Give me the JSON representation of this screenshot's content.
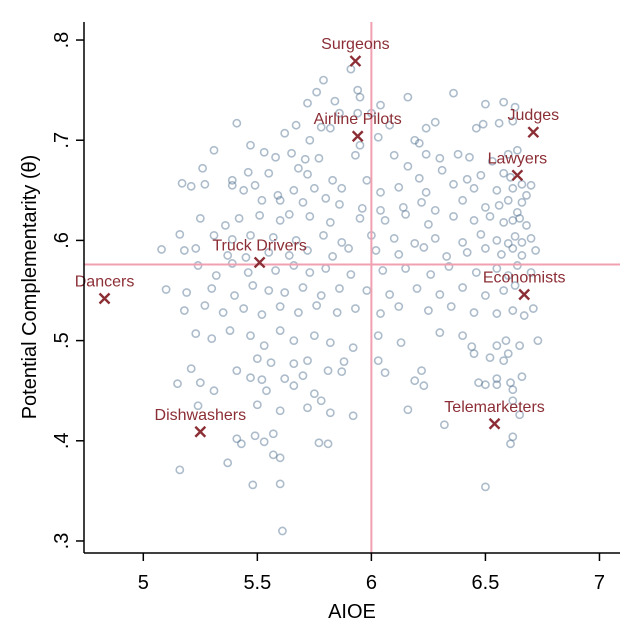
{
  "chart_data": {
    "type": "scatter",
    "title": "",
    "xlabel": "AIOE",
    "ylabel": "Potential Complementarity (θ)",
    "xlim": [
      4.74,
      7.09
    ],
    "ylim": [
      0.288,
      0.818
    ],
    "xticks": [
      5,
      5.5,
      6,
      6.5,
      7
    ],
    "xtick_labels": [
      "5",
      "5.5",
      "6",
      "6.5",
      "7"
    ],
    "yticks": [
      0.3,
      0.4,
      0.5,
      0.6,
      0.7,
      0.8
    ],
    "ytick_labels": [
      ".3",
      ".4",
      ".5",
      ".6",
      ".7",
      ".8"
    ],
    "grid": false,
    "reference_lines": {
      "x": 6.0,
      "y": 0.576
    },
    "colors": {
      "points": "#4a6a8c",
      "highlight": "#8b2e35",
      "reflines": "#f0a0b0"
    },
    "highlighted": [
      {
        "label": "Surgeons",
        "x": 5.93,
        "y": 0.779
      },
      {
        "label": "Airline Pilots",
        "x": 5.94,
        "y": 0.704
      },
      {
        "label": "Judges",
        "x": 6.71,
        "y": 0.708
      },
      {
        "label": "Lawyers",
        "x": 6.64,
        "y": 0.665
      },
      {
        "label": "Truck Drivers",
        "x": 5.51,
        "y": 0.578
      },
      {
        "label": "Dancers",
        "x": 4.83,
        "y": 0.542
      },
      {
        "label": "Economists",
        "x": 6.67,
        "y": 0.546
      },
      {
        "label": "Dishwashers",
        "x": 5.25,
        "y": 0.409
      },
      {
        "label": "Telemarketers",
        "x": 6.54,
        "y": 0.417
      }
    ],
    "points": [
      [
        5.91,
        0.771
      ],
      [
        5.79,
        0.76
      ],
      [
        5.94,
        0.75
      ],
      [
        5.95,
        0.743
      ],
      [
        5.76,
        0.748
      ],
      [
        5.72,
        0.737
      ],
      [
        5.84,
        0.739
      ],
      [
        6.16,
        0.743
      ],
      [
        6.36,
        0.747
      ],
      [
        5.86,
        0.727
      ],
      [
        5.94,
        0.727
      ],
      [
        6.0,
        0.727
      ],
      [
        6.04,
        0.735
      ],
      [
        6.5,
        0.736
      ],
      [
        6.58,
        0.738
      ],
      [
        6.63,
        0.733
      ],
      [
        5.41,
        0.717
      ],
      [
        5.67,
        0.715
      ],
      [
        5.82,
        0.712
      ],
      [
        5.78,
        0.713
      ],
      [
        6.08,
        0.715
      ],
      [
        6.24,
        0.712
      ],
      [
        6.28,
        0.718
      ],
      [
        6.46,
        0.712
      ],
      [
        6.49,
        0.716
      ],
      [
        6.56,
        0.717
      ],
      [
        6.62,
        0.719
      ],
      [
        5.62,
        0.707
      ],
      [
        5.73,
        0.7
      ],
      [
        5.95,
        0.695
      ],
      [
        6.03,
        0.703
      ],
      [
        6.19,
        0.7
      ],
      [
        6.21,
        0.697
      ],
      [
        5.31,
        0.69
      ],
      [
        5.47,
        0.695
      ],
      [
        5.53,
        0.688
      ],
      [
        5.58,
        0.683
      ],
      [
        5.65,
        0.687
      ],
      [
        5.71,
        0.681
      ],
      [
        5.77,
        0.682
      ],
      [
        5.93,
        0.685
      ],
      [
        6.1,
        0.685
      ],
      [
        6.24,
        0.686
      ],
      [
        6.3,
        0.682
      ],
      [
        6.38,
        0.686
      ],
      [
        6.43,
        0.683
      ],
      [
        6.53,
        0.679
      ],
      [
        6.6,
        0.686
      ],
      [
        6.64,
        0.69
      ],
      [
        5.26,
        0.672
      ],
      [
        5.39,
        0.66
      ],
      [
        5.46,
        0.668
      ],
      [
        5.55,
        0.667
      ],
      [
        5.68,
        0.672
      ],
      [
        5.72,
        0.666
      ],
      [
        5.83,
        0.66
      ],
      [
        5.98,
        0.66
      ],
      [
        6.16,
        0.674
      ],
      [
        6.21,
        0.662
      ],
      [
        6.31,
        0.67
      ],
      [
        6.42,
        0.661
      ],
      [
        6.48,
        0.665
      ],
      [
        6.58,
        0.667
      ],
      [
        6.61,
        0.663
      ],
      [
        5.17,
        0.657
      ],
      [
        5.21,
        0.654
      ],
      [
        5.27,
        0.656
      ],
      [
        5.39,
        0.655
      ],
      [
        5.44,
        0.65
      ],
      [
        5.49,
        0.655
      ],
      [
        5.59,
        0.645
      ],
      [
        5.66,
        0.65
      ],
      [
        5.75,
        0.652
      ],
      [
        5.87,
        0.652
      ],
      [
        6.04,
        0.648
      ],
      [
        6.12,
        0.653
      ],
      [
        6.24,
        0.648
      ],
      [
        6.36,
        0.656
      ],
      [
        6.45,
        0.652
      ],
      [
        6.55,
        0.65
      ],
      [
        6.62,
        0.652
      ],
      [
        6.66,
        0.656
      ],
      [
        6.68,
        0.645
      ],
      [
        6.7,
        0.655
      ],
      [
        5.52,
        0.64
      ],
      [
        5.6,
        0.64
      ],
      [
        5.7,
        0.638
      ],
      [
        5.8,
        0.642
      ],
      [
        5.86,
        0.636
      ],
      [
        5.96,
        0.632
      ],
      [
        6.04,
        0.63
      ],
      [
        6.14,
        0.633
      ],
      [
        6.22,
        0.638
      ],
      [
        6.28,
        0.63
      ],
      [
        6.4,
        0.64
      ],
      [
        6.5,
        0.633
      ],
      [
        6.56,
        0.635
      ],
      [
        6.6,
        0.64
      ],
      [
        6.64,
        0.628
      ],
      [
        6.66,
        0.638
      ],
      [
        5.25,
        0.622
      ],
      [
        5.36,
        0.615
      ],
      [
        5.42,
        0.622
      ],
      [
        5.51,
        0.625
      ],
      [
        5.6,
        0.62
      ],
      [
        5.64,
        0.626
      ],
      [
        5.73,
        0.624
      ],
      [
        5.82,
        0.618
      ],
      [
        5.95,
        0.622
      ],
      [
        6.06,
        0.62
      ],
      [
        6.15,
        0.626
      ],
      [
        6.25,
        0.616
      ],
      [
        6.36,
        0.624
      ],
      [
        6.45,
        0.62
      ],
      [
        6.52,
        0.624
      ],
      [
        6.58,
        0.618
      ],
      [
        6.62,
        0.62
      ],
      [
        6.65,
        0.622
      ],
      [
        6.68,
        0.615
      ],
      [
        5.16,
        0.606
      ],
      [
        5.31,
        0.605
      ],
      [
        5.39,
        0.601
      ],
      [
        5.47,
        0.605
      ],
      [
        5.57,
        0.603
      ],
      [
        5.67,
        0.6
      ],
      [
        5.79,
        0.605
      ],
      [
        5.87,
        0.598
      ],
      [
        6.0,
        0.605
      ],
      [
        6.1,
        0.602
      ],
      [
        6.19,
        0.597
      ],
      [
        6.28,
        0.602
      ],
      [
        6.4,
        0.598
      ],
      [
        6.48,
        0.606
      ],
      [
        6.55,
        0.6
      ],
      [
        6.6,
        0.597
      ],
      [
        6.63,
        0.604
      ],
      [
        6.66,
        0.598
      ],
      [
        6.7,
        0.602
      ],
      [
        5.08,
        0.591
      ],
      [
        5.18,
        0.59
      ],
      [
        5.23,
        0.592
      ],
      [
        5.37,
        0.585
      ],
      [
        5.45,
        0.583
      ],
      [
        5.55,
        0.588
      ],
      [
        5.64,
        0.585
      ],
      [
        5.72,
        0.59
      ],
      [
        5.83,
        0.584
      ],
      [
        5.9,
        0.592
      ],
      [
        6.02,
        0.59
      ],
      [
        6.12,
        0.586
      ],
      [
        6.23,
        0.593
      ],
      [
        6.33,
        0.584
      ],
      [
        6.42,
        0.588
      ],
      [
        6.5,
        0.592
      ],
      [
        6.57,
        0.586
      ],
      [
        6.62,
        0.592
      ],
      [
        6.66,
        0.585
      ],
      [
        6.72,
        0.59
      ],
      [
        5.24,
        0.575
      ],
      [
        5.32,
        0.565
      ],
      [
        5.39,
        0.577
      ],
      [
        5.46,
        0.568
      ],
      [
        5.58,
        0.57
      ],
      [
        5.66,
        0.575
      ],
      [
        5.73,
        0.568
      ],
      [
        5.8,
        0.572
      ],
      [
        5.91,
        0.566
      ],
      [
        6.05,
        0.57
      ],
      [
        6.15,
        0.572
      ],
      [
        6.26,
        0.566
      ],
      [
        6.34,
        0.574
      ],
      [
        6.46,
        0.568
      ],
      [
        6.55,
        0.572
      ],
      [
        6.6,
        0.565
      ],
      [
        6.64,
        0.575
      ],
      [
        6.7,
        0.568
      ],
      [
        5.1,
        0.551
      ],
      [
        5.19,
        0.548
      ],
      [
        5.3,
        0.552
      ],
      [
        5.4,
        0.545
      ],
      [
        5.48,
        0.555
      ],
      [
        5.55,
        0.55
      ],
      [
        5.62,
        0.548
      ],
      [
        5.7,
        0.553
      ],
      [
        5.78,
        0.545
      ],
      [
        5.86,
        0.552
      ],
      [
        5.98,
        0.55
      ],
      [
        6.08,
        0.546
      ],
      [
        6.2,
        0.552
      ],
      [
        6.3,
        0.546
      ],
      [
        6.4,
        0.553
      ],
      [
        6.5,
        0.545
      ],
      [
        6.58,
        0.55
      ],
      [
        6.63,
        0.555
      ],
      [
        5.18,
        0.53
      ],
      [
        5.27,
        0.535
      ],
      [
        5.35,
        0.528
      ],
      [
        5.44,
        0.532
      ],
      [
        5.52,
        0.526
      ],
      [
        5.6,
        0.534
      ],
      [
        5.68,
        0.528
      ],
      [
        5.76,
        0.535
      ],
      [
        5.85,
        0.528
      ],
      [
        5.93,
        0.532
      ],
      [
        6.04,
        0.527
      ],
      [
        6.12,
        0.534
      ],
      [
        6.25,
        0.53
      ],
      [
        6.35,
        0.534
      ],
      [
        6.45,
        0.528
      ],
      [
        6.55,
        0.527
      ],
      [
        6.62,
        0.53
      ],
      [
        6.67,
        0.525
      ],
      [
        6.71,
        0.532
      ],
      [
        5.23,
        0.507
      ],
      [
        5.3,
        0.502
      ],
      [
        5.38,
        0.51
      ],
      [
        5.47,
        0.505
      ],
      [
        5.53,
        0.495
      ],
      [
        5.6,
        0.51
      ],
      [
        5.66,
        0.5
      ],
      [
        5.75,
        0.505
      ],
      [
        5.82,
        0.498
      ],
      [
        5.92,
        0.493
      ],
      [
        6.03,
        0.505
      ],
      [
        6.13,
        0.498
      ],
      [
        6.3,
        0.508
      ],
      [
        6.4,
        0.505
      ],
      [
        6.44,
        0.494
      ],
      [
        6.55,
        0.495
      ],
      [
        6.59,
        0.5
      ],
      [
        6.65,
        0.495
      ],
      [
        6.73,
        0.5
      ],
      [
        5.5,
        0.482
      ],
      [
        5.56,
        0.478
      ],
      [
        5.66,
        0.477
      ],
      [
        5.72,
        0.48
      ],
      [
        5.88,
        0.479
      ],
      [
        6.03,
        0.48
      ],
      [
        6.45,
        0.487
      ],
      [
        6.52,
        0.483
      ],
      [
        6.58,
        0.48
      ],
      [
        6.6,
        0.487
      ],
      [
        5.21,
        0.472
      ],
      [
        5.41,
        0.47
      ],
      [
        5.47,
        0.463
      ],
      [
        5.52,
        0.461
      ],
      [
        5.62,
        0.462
      ],
      [
        5.7,
        0.465
      ],
      [
        5.81,
        0.47
      ],
      [
        5.87,
        0.469
      ],
      [
        6.06,
        0.468
      ],
      [
        6.22,
        0.47
      ],
      [
        6.19,
        0.46
      ],
      [
        6.47,
        0.458
      ],
      [
        6.55,
        0.462
      ],
      [
        6.61,
        0.458
      ],
      [
        6.66,
        0.464
      ],
      [
        5.15,
        0.457
      ],
      [
        5.25,
        0.458
      ],
      [
        5.31,
        0.45
      ],
      [
        5.54,
        0.45
      ],
      [
        5.66,
        0.455
      ],
      [
        5.75,
        0.447
      ],
      [
        6.23,
        0.455
      ],
      [
        6.5,
        0.456
      ],
      [
        6.55,
        0.456
      ],
      [
        6.62,
        0.451
      ],
      [
        5.24,
        0.435
      ],
      [
        5.5,
        0.436
      ],
      [
        5.6,
        0.43
      ],
      [
        5.72,
        0.433
      ],
      [
        5.78,
        0.44
      ],
      [
        5.82,
        0.428
      ],
      [
        5.92,
        0.425
      ],
      [
        6.16,
        0.431
      ],
      [
        6.62,
        0.44
      ],
      [
        6.65,
        0.426
      ],
      [
        5.41,
        0.402
      ],
      [
        5.43,
        0.397
      ],
      [
        5.49,
        0.405
      ],
      [
        5.53,
        0.399
      ],
      [
        5.57,
        0.407
      ],
      [
        5.77,
        0.398
      ],
      [
        5.81,
        0.397
      ],
      [
        6.32,
        0.416
      ],
      [
        6.61,
        0.397
      ],
      [
        6.62,
        0.404
      ],
      [
        5.16,
        0.371
      ],
      [
        5.37,
        0.378
      ],
      [
        5.57,
        0.386
      ],
      [
        5.6,
        0.383
      ],
      [
        5.48,
        0.356
      ],
      [
        5.6,
        0.357
      ],
      [
        6.5,
        0.354
      ],
      [
        5.61,
        0.31
      ]
    ]
  }
}
